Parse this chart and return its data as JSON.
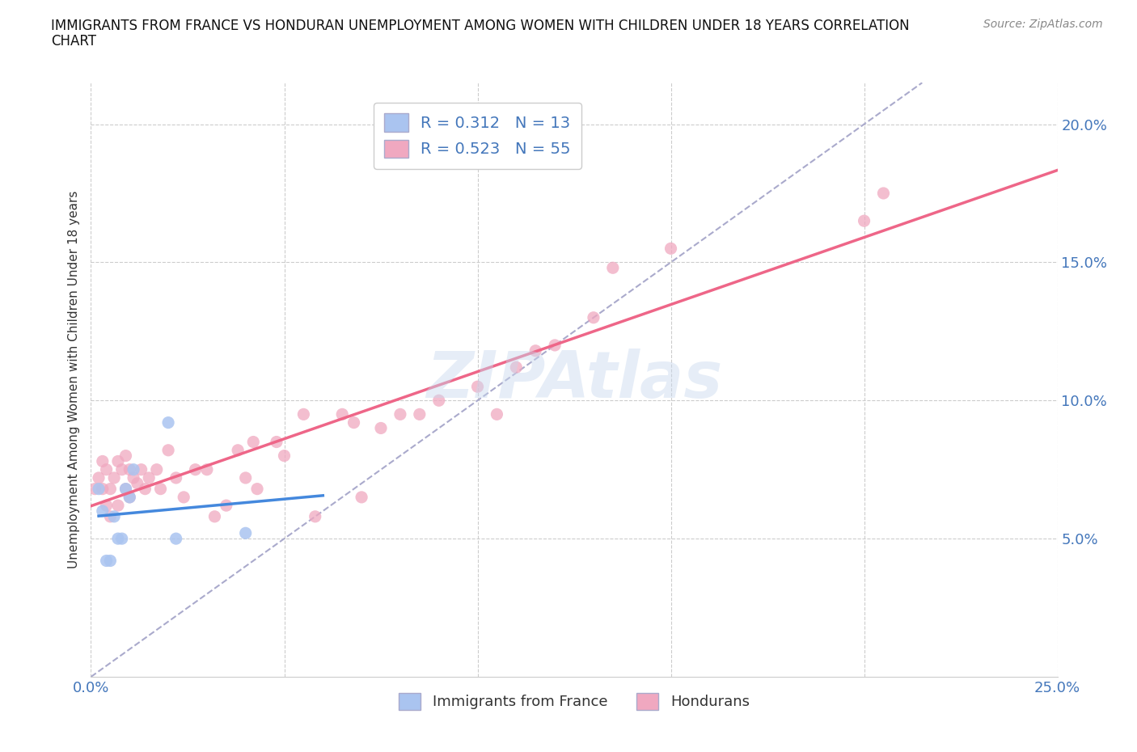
{
  "title_line1": "IMMIGRANTS FROM FRANCE VS HONDURAN UNEMPLOYMENT AMONG WOMEN WITH CHILDREN UNDER 18 YEARS CORRELATION",
  "title_line2": "CHART",
  "source": "Source: ZipAtlas.com",
  "ylabel": "Unemployment Among Women with Children Under 18 years",
  "xlim": [
    0.0,
    0.25
  ],
  "ylim": [
    0.0,
    0.215
  ],
  "xticks": [
    0.0,
    0.05,
    0.1,
    0.15,
    0.2,
    0.25
  ],
  "yticks": [
    0.05,
    0.1,
    0.15,
    0.2
  ],
  "france_color": "#aac4f0",
  "honduran_color": "#f0a8c0",
  "france_line_color": "#4488dd",
  "honduran_line_color": "#ee6688",
  "dashed_line_color": "#aaaacc",
  "legend_france_r": "0.312",
  "legend_france_n": "13",
  "legend_honduran_r": "0.523",
  "legend_honduran_n": "55",
  "watermark": "ZIPAtlas",
  "france_scatter_x": [
    0.002,
    0.003,
    0.004,
    0.005,
    0.006,
    0.007,
    0.008,
    0.009,
    0.01,
    0.011,
    0.02,
    0.022,
    0.04
  ],
  "france_scatter_y": [
    0.068,
    0.06,
    0.042,
    0.042,
    0.058,
    0.05,
    0.05,
    0.068,
    0.065,
    0.075,
    0.092,
    0.05,
    0.052
  ],
  "honduran_scatter_x": [
    0.001,
    0.002,
    0.003,
    0.003,
    0.004,
    0.004,
    0.005,
    0.005,
    0.006,
    0.007,
    0.007,
    0.008,
    0.009,
    0.009,
    0.01,
    0.01,
    0.011,
    0.012,
    0.013,
    0.014,
    0.015,
    0.017,
    0.018,
    0.02,
    0.022,
    0.024,
    0.027,
    0.03,
    0.032,
    0.035,
    0.038,
    0.04,
    0.042,
    0.043,
    0.048,
    0.05,
    0.055,
    0.058,
    0.065,
    0.068,
    0.07,
    0.075,
    0.08,
    0.085,
    0.09,
    0.1,
    0.105,
    0.11,
    0.115,
    0.12,
    0.13,
    0.135,
    0.15,
    0.2,
    0.205
  ],
  "honduran_scatter_y": [
    0.068,
    0.072,
    0.068,
    0.078,
    0.062,
    0.075,
    0.058,
    0.068,
    0.072,
    0.062,
    0.078,
    0.075,
    0.068,
    0.08,
    0.065,
    0.075,
    0.072,
    0.07,
    0.075,
    0.068,
    0.072,
    0.075,
    0.068,
    0.082,
    0.072,
    0.065,
    0.075,
    0.075,
    0.058,
    0.062,
    0.082,
    0.072,
    0.085,
    0.068,
    0.085,
    0.08,
    0.095,
    0.058,
    0.095,
    0.092,
    0.065,
    0.09,
    0.095,
    0.095,
    0.1,
    0.105,
    0.095,
    0.112,
    0.118,
    0.12,
    0.13,
    0.148,
    0.155,
    0.165,
    0.175
  ]
}
